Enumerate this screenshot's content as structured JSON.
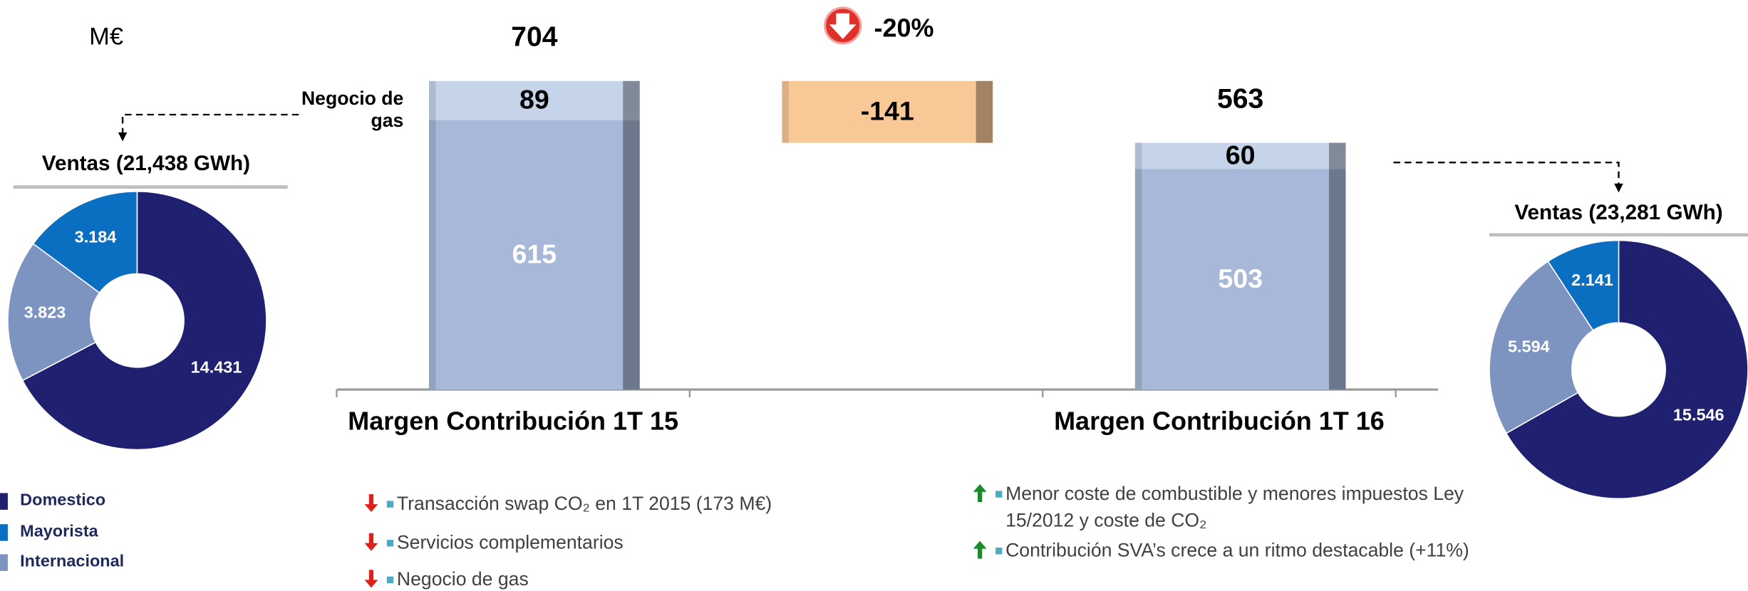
{
  "unit_label": "M€",
  "chart_data": [
    {
      "type": "waterfall",
      "categories": [
        "Margen Contribución 1T 15",
        null,
        "Margen Contribución 1T 16"
      ],
      "series": [
        {
          "color": "#a7b8d8",
          "values": [
            615,
            null,
            503
          ]
        },
        {
          "name": "Negocio de gas",
          "color": "#c6d4ea",
          "values": [
            89,
            null,
            60
          ]
        },
        {
          "color": "#f8c896",
          "values": [
            null,
            -141,
            null
          ]
        }
      ],
      "totals": [
        704,
        null,
        563
      ],
      "change": {
        "value": -20,
        "label": "-20%"
      },
      "ylim": [
        0,
        800
      ]
    },
    {
      "type": "donut",
      "title": "Ventas (21,438 GWh)",
      "values": [
        14.431,
        3.823,
        3.184
      ],
      "colors": [
        "#1f2170",
        "#7d93c0",
        "#0b6fc1"
      ]
    },
    {
      "type": "donut",
      "title": "Ventas (23,281 GWh)",
      "values": [
        15.546,
        5.594,
        2.141
      ],
      "colors": [
        "#1f2170",
        "#7d93c0",
        "#0b6fc1"
      ]
    }
  ],
  "legend": [
    {
      "name": "Domestico",
      "color": "#1f2170"
    },
    {
      "name": "Mayorista",
      "color": "#0b6fc1"
    },
    {
      "name": "Internacional",
      "color": "#7d93c0"
    }
  ],
  "bullets": [
    [
      {
        "trend": "down",
        "text": "Transacción swap CO₂ en 1T 2015 (173 M€)"
      },
      {
        "trend": "down",
        "text": "Servicios complementarios"
      },
      {
        "trend": "down",
        "text": "Negocio de gas"
      }
    ],
    [
      {
        "trend": "up",
        "text": "Menor coste de combustible y menores impuestos Ley 15/2012 y coste de CO₂"
      },
      {
        "trend": "up",
        "text": "Contribución SVA’s crece a un ritmo destacable (+11%)"
      }
    ]
  ]
}
